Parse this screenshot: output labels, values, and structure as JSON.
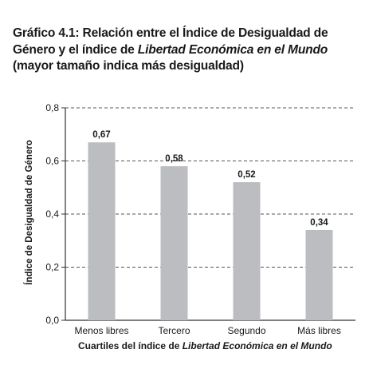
{
  "title": {
    "part1": "Gráfico 4.1: Relación entre el Índice de Desigualdad de Género y el índice de ",
    "part2_italic": "Libertad Económica en el Mundo",
    "part3": " (mayor tamaño indica más desigualdad)"
  },
  "chart_data": {
    "type": "bar",
    "categories": [
      "Menos libres",
      "Tercero",
      "Segundo",
      "Más libres"
    ],
    "values": [
      0.67,
      0.58,
      0.52,
      0.34
    ],
    "value_labels": [
      "0,67",
      "0,58",
      "0,52",
      "0,34"
    ],
    "ylim": [
      0,
      0.8
    ],
    "yticks": [
      0,
      0.2,
      0.4,
      0.6,
      0.8
    ],
    "ytick_labels": [
      "0,0",
      "0,2",
      "0,4",
      "0,6",
      "0,8"
    ],
    "ylabel": "Índice de Desigualdad de Género",
    "xlabel_part1": "Cuartiles del índice de ",
    "xlabel_part2_italic": "Libertad Económica en el Mundo",
    "grid": "horizontal dashed",
    "bar_color": "#bcbdc0",
    "axis_color": "#333333"
  }
}
